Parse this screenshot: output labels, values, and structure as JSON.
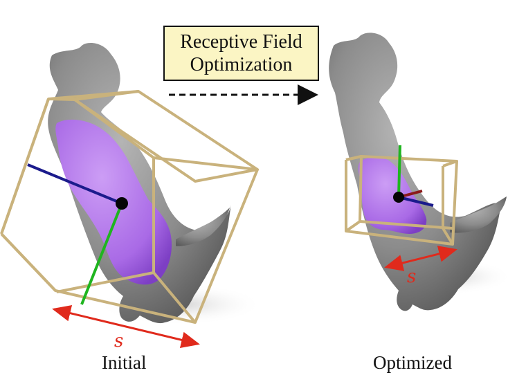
{
  "title_box": {
    "line1": "Receptive Field",
    "line2": "Optimization"
  },
  "panels": {
    "initial": {
      "caption": "Initial",
      "size_label": "s"
    },
    "optimized": {
      "caption": "Optimized",
      "size_label": "s"
    }
  },
  "colors": {
    "shape": "#8a8a8a",
    "highlight": "#b07be8",
    "box": "#c9b27c",
    "axis_x": "#1b1b8c",
    "axis_y": "#1fb51f",
    "axis_z": "#8b1a1a",
    "measure": "#e02a1c",
    "title_bg": "#fbf5c4"
  }
}
